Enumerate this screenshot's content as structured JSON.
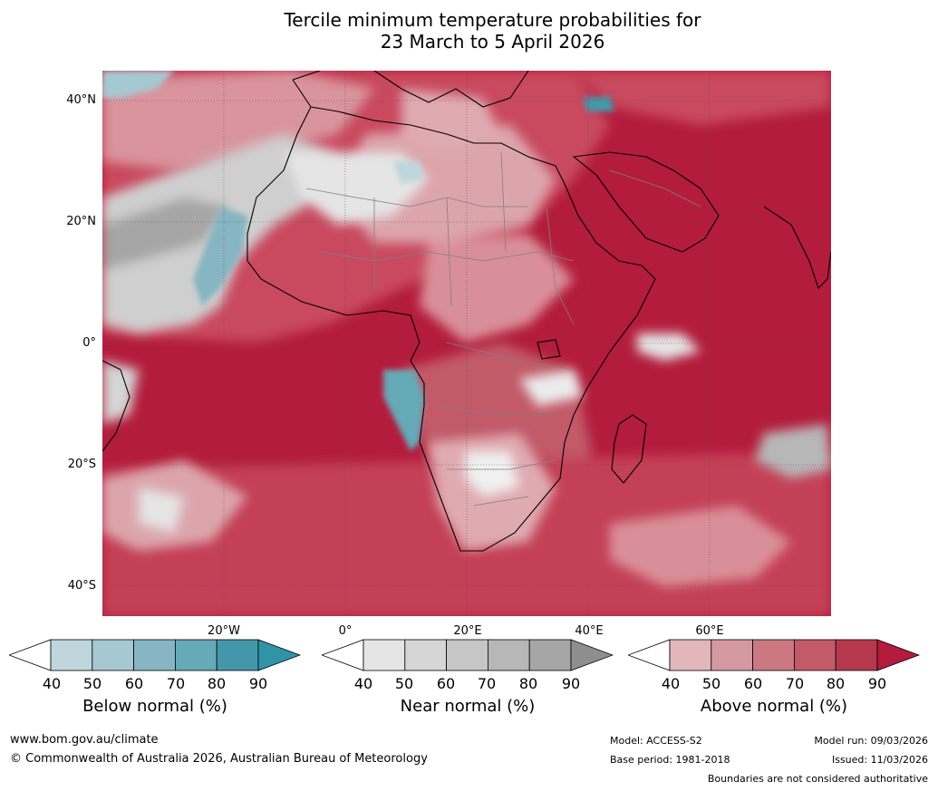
{
  "title": {
    "line1": "Tercile minimum temperature probabilities for",
    "line2": "23 March to 5 April 2026"
  },
  "map": {
    "lat_labels": [
      "40°N",
      "20°N",
      "0°",
      "20°S",
      "40°S"
    ],
    "lon_labels": [
      "20°W",
      "0°",
      "20°E",
      "40°E",
      "60°E"
    ]
  },
  "colorbars": [
    {
      "caption": "Below normal (%)",
      "ticks": [
        "40",
        "50",
        "60",
        "70",
        "80",
        "90"
      ],
      "colors": [
        "#ffffff",
        "#bfd6dd",
        "#a6c8d1",
        "#87b5c3",
        "#66a9b7",
        "#4497aa",
        "#2f94a8"
      ]
    },
    {
      "caption": "Near normal (%)",
      "ticks": [
        "40",
        "50",
        "60",
        "70",
        "80",
        "90"
      ],
      "colors": [
        "#ffffff",
        "#e5e5e5",
        "#d6d6d6",
        "#c6c6c6",
        "#b7b7b7",
        "#a6a6a6",
        "#8e8e8e"
      ]
    },
    {
      "caption": "Above normal (%)",
      "ticks": [
        "40",
        "50",
        "60",
        "70",
        "80",
        "90"
      ],
      "colors": [
        "#ffffff",
        "#e1b7bc",
        "#d59aa1",
        "#cc7883",
        "#c25a68",
        "#b6384c",
        "#b31c3c"
      ]
    }
  ],
  "footer": {
    "url": "www.bom.gov.au/climate",
    "copyright": "© Commonwealth of Australia 2026, Australian Bureau of Meteorology",
    "model": "Model: ACCESS-S2",
    "base_period": "Base period: 1981-2018",
    "model_run": "Model run: 09/03/2026",
    "issued": "Issued: 11/03/2026",
    "disclaimer": "Boundaries are not considered authoritative"
  }
}
